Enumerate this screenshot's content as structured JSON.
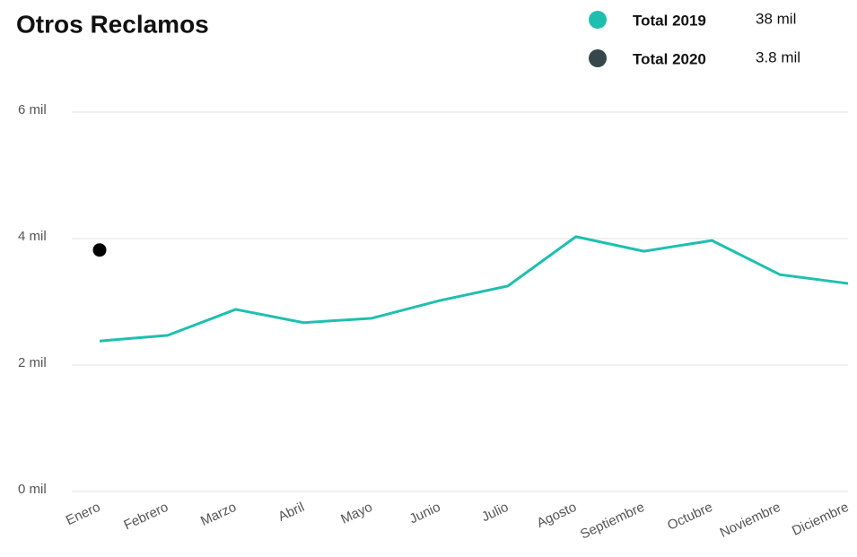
{
  "chart_data": {
    "type": "line",
    "title": "Otros Reclamos",
    "categories": [
      "Enero",
      "Febrero",
      "Marzo",
      "Abril",
      "Mayo",
      "Junio",
      "Julio",
      "Agosto",
      "Septiembre",
      "Octubre",
      "Noviembre",
      "Diciembre"
    ],
    "series": [
      {
        "name": "Total 2019",
        "color": "#1fbfb0",
        "total": 38000,
        "total_label": "38 mil",
        "values": [
          2380,
          2470,
          2880,
          2670,
          2740,
          3020,
          3250,
          4030,
          3800,
          3970,
          3430,
          3290
        ]
      },
      {
        "name": "Total 2020",
        "color": "#374649",
        "total": 3800,
        "total_label": "3.8 mil",
        "values": [
          3820,
          null,
          null,
          null,
          null,
          null,
          null,
          null,
          null,
          null,
          null,
          null
        ]
      }
    ],
    "ylim": [
      0,
      6000
    ],
    "yticks": [
      {
        "value": 0,
        "label": "0 mil"
      },
      {
        "value": 2000,
        "label": "2 mil"
      },
      {
        "value": 4000,
        "label": "4 mil"
      },
      {
        "value": 6000,
        "label": "6 mil"
      }
    ],
    "grid": true
  }
}
